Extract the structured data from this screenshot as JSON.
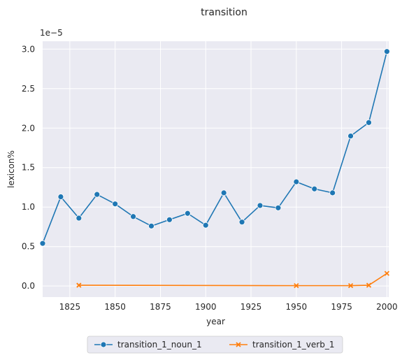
{
  "chart_data": {
    "type": "line",
    "title": "transition",
    "xlabel": "year",
    "ylabel": "lexicon%",
    "y_offset_label": "1e−5",
    "xlim": [
      1810,
      2001
    ],
    "ylim": [
      -0.14,
      3.1
    ],
    "x_ticks": [
      1825,
      1850,
      1875,
      1900,
      1925,
      1950,
      1975,
      2000
    ],
    "y_ticks": [
      0.0,
      0.5,
      1.0,
      1.5,
      2.0,
      2.5,
      3.0
    ],
    "y_tick_labels": [
      "0.0",
      "0.5",
      "1.0",
      "1.5",
      "2.0",
      "2.5",
      "3.0"
    ],
    "grid": true,
    "legend_position": "bottom-center",
    "background": "#eaeaf2",
    "series": [
      {
        "name": "transition_1_noun_1",
        "color": "#1f77b4",
        "marker": "circle",
        "x": [
          1810,
          1820,
          1830,
          1840,
          1850,
          1860,
          1870,
          1880,
          1890,
          1900,
          1910,
          1920,
          1930,
          1940,
          1950,
          1960,
          1970,
          1980,
          1990,
          2000
        ],
        "y": [
          0.54,
          1.13,
          0.86,
          1.16,
          1.04,
          0.88,
          0.76,
          0.84,
          0.92,
          0.77,
          1.18,
          0.81,
          1.02,
          0.99,
          1.32,
          1.23,
          1.18,
          1.9,
          2.07,
          2.97
        ]
      },
      {
        "name": "transition_1_verb_1",
        "color": "#ff7f0e",
        "marker": "x",
        "x": [
          1830,
          1950,
          1980,
          1990,
          2000
        ],
        "y": [
          0.01,
          0.005,
          0.005,
          0.01,
          0.16
        ]
      }
    ]
  }
}
